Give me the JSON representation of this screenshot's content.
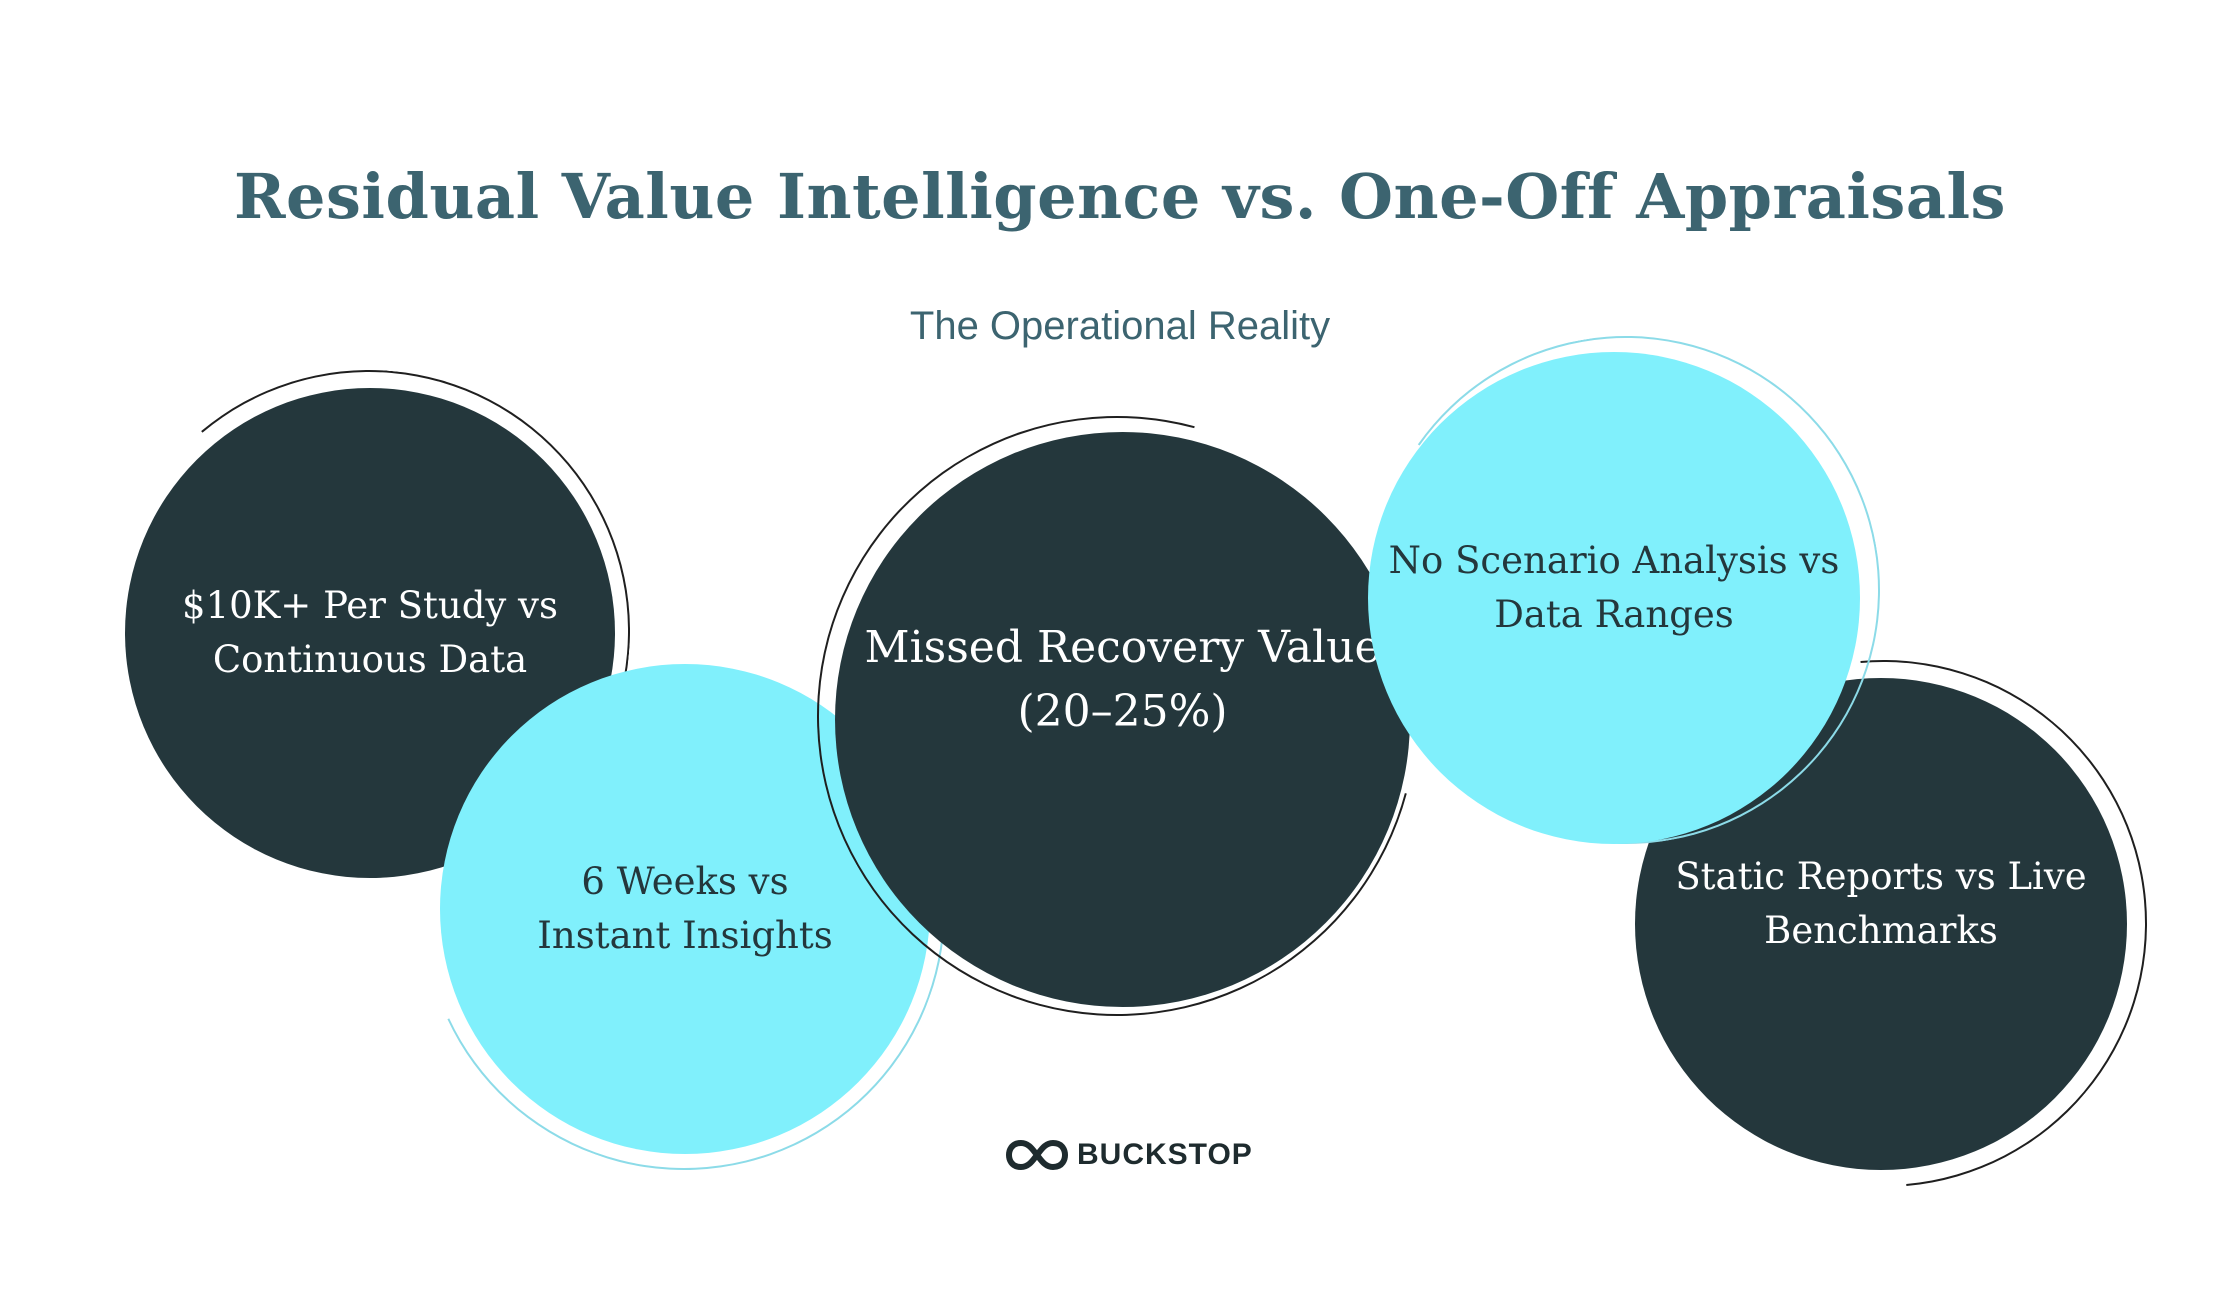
{
  "header": {
    "title": "Residual Value Intelligence vs. One-Off Appraisals",
    "subtitle": "The Operational Reality"
  },
  "bubbles": [
    {
      "line1": "$10K+ Per Study vs",
      "line2": "Continuous Data"
    },
    {
      "line1": "6 Weeks vs",
      "line2": "Instant Insights"
    },
    {
      "line1": "Missed Recovery Value",
      "line2": "(20–25%)"
    },
    {
      "line1": "No Scenario Analysis vs",
      "line2": "Data Ranges"
    },
    {
      "line1": "Static Reports vs Live",
      "line2": "Benchmarks"
    }
  ],
  "brand": {
    "name": "BUCKSTOP",
    "icon": "infinity-icon",
    "colors": {
      "dark": "#24373c",
      "light": "#80f0fc",
      "title": "#3c6470"
    }
  }
}
